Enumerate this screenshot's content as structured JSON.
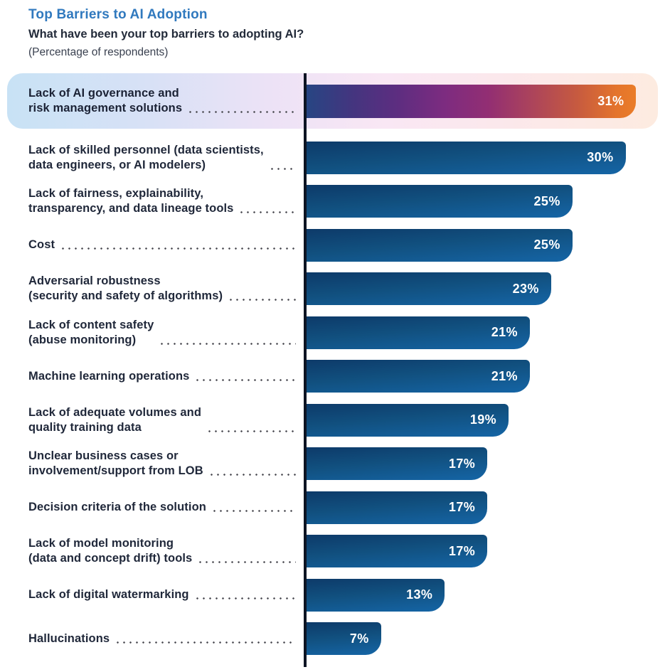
{
  "header": {
    "title": "Top Barriers to AI Adoption",
    "question": "What have been your top barriers to adopting AI?",
    "subtitle": "(Percentage of respondents)"
  },
  "colors": {
    "title_blue": "#3079be",
    "bar_gradient_top": "#0d3a69",
    "bar_gradient_bottom": "#1565a6",
    "highlight_bar_gradient": [
      "#274583",
      "#7d2c80",
      "#ab435c",
      "#ea7c28"
    ],
    "highlight_band_gradient": [
      "#c8e2f5",
      "#f9e7f4",
      "#fdebe0"
    ],
    "axis": "#0d1423",
    "value_text": "#ffffff",
    "label_text": "#20283a"
  },
  "chart_data": {
    "type": "bar",
    "orientation": "horizontal",
    "title": "Top Barriers to AI Adoption",
    "subtitle": "What have been your top barriers to adopting AI?",
    "unit": "%",
    "xlim": [
      0,
      31
    ],
    "grid": false,
    "legend": false,
    "highlighted_index": 0,
    "categories": [
      "Lack of AI governance and risk management solutions",
      "Lack of skilled personnel (data scientists, data engineers, or AI modelers)",
      "Lack of fairness, explainability, transparency, and data lineage tools",
      "Cost",
      "Adversarial robustness (security and safety of algorithms)",
      "Lack of content safety (abuse monitoring)",
      "Machine learning operations",
      "Lack of adequate volumes and quality training data",
      "Unclear business cases or involvement/support from LOB",
      "Decision criteria of the solution",
      "Lack of model monitoring (data and concept drift) tools",
      "Lack of digital watermarking",
      "Hallucinations"
    ],
    "values": [
      31,
      30,
      25,
      25,
      23,
      21,
      21,
      19,
      17,
      17,
      17,
      13,
      7
    ],
    "rows": [
      {
        "label": "Lack of AI governance and\nrisk management solutions",
        "value": 31,
        "value_label": "31%",
        "highlight": true
      },
      {
        "label": "Lack of skilled personnel (data scientists,\ndata engineers, or AI modelers)",
        "value": 30,
        "value_label": "30%",
        "highlight": false
      },
      {
        "label": "Lack of fairness, explainability,\ntransparency, and data lineage tools",
        "value": 25,
        "value_label": "25%",
        "highlight": false
      },
      {
        "label": "Cost",
        "value": 25,
        "value_label": "25%",
        "highlight": false
      },
      {
        "label": "Adversarial robustness\n(security and safety of algorithms)",
        "value": 23,
        "value_label": "23%",
        "highlight": false
      },
      {
        "label": "Lack of content safety\n(abuse monitoring)",
        "value": 21,
        "value_label": "21%",
        "highlight": false
      },
      {
        "label": "Machine learning operations",
        "value": 21,
        "value_label": "21%",
        "highlight": false
      },
      {
        "label": "Lack of adequate volumes and\nquality training data",
        "value": 19,
        "value_label": "19%",
        "highlight": false
      },
      {
        "label": "Unclear business cases or\ninvolvement/support from LOB",
        "value": 17,
        "value_label": "17%",
        "highlight": false
      },
      {
        "label": "Decision criteria of the solution",
        "value": 17,
        "value_label": "17%",
        "highlight": false
      },
      {
        "label": "Lack of model monitoring\n(data and concept drift) tools",
        "value": 17,
        "value_label": "17%",
        "highlight": false
      },
      {
        "label": "Lack of digital watermarking",
        "value": 13,
        "value_label": "13%",
        "highlight": false
      },
      {
        "label": "Hallucinations",
        "value": 7,
        "value_label": "7%",
        "highlight": false
      }
    ]
  }
}
